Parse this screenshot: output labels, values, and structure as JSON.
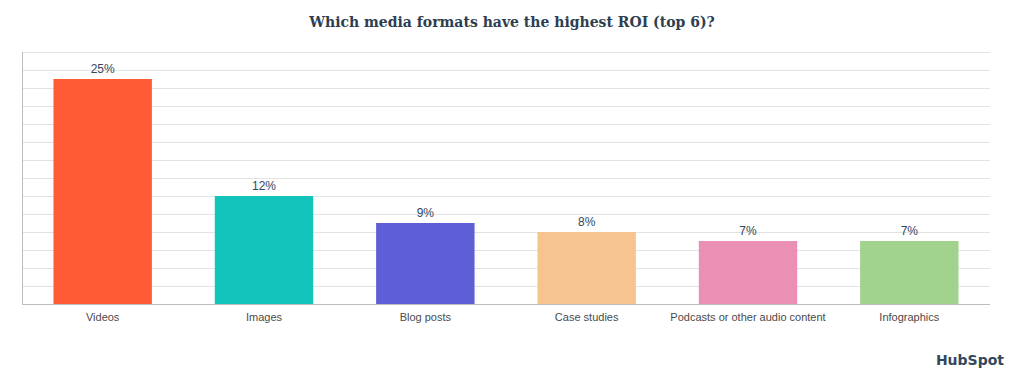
{
  "chart_data": {
    "type": "bar",
    "title": "Which media formats have the highest ROI (top 6)?",
    "categories": [
      "Videos",
      "Images",
      "Blog posts",
      "Case studies",
      "Podcasts or other audio content",
      "Infographics"
    ],
    "values": [
      25,
      12,
      9,
      8,
      7,
      7
    ],
    "value_labels": [
      "25%",
      "12%",
      "9%",
      "8%",
      "7%",
      "7%"
    ],
    "colors": [
      "#ff5c35",
      "#13c4bd",
      "#5e5ed6",
      "#f6c48f",
      "#ea90b4",
      "#a1d28e"
    ],
    "ylim": [
      0,
      28
    ],
    "yticks": [
      0,
      2,
      4,
      6,
      8,
      10,
      12,
      14,
      16,
      18,
      20,
      22,
      24,
      26,
      28
    ],
    "grid": true,
    "data_labels": true,
    "tick_labels": "x",
    "annotations": [
      "HubSpot"
    ]
  }
}
